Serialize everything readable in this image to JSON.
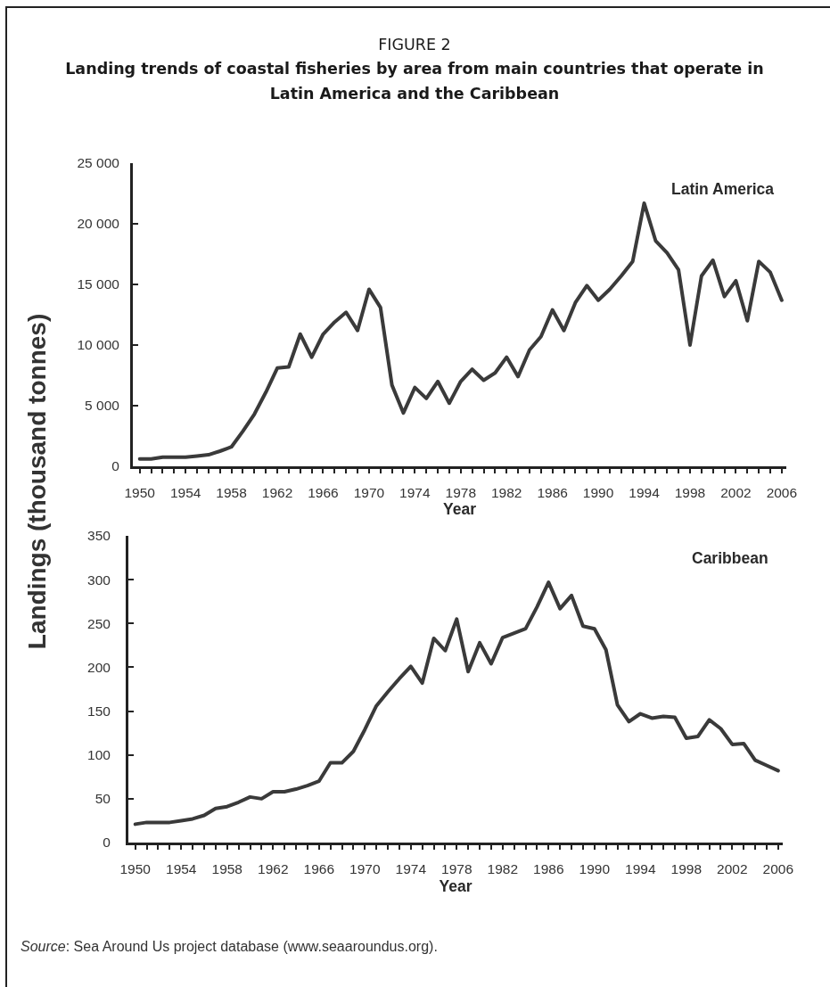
{
  "chart_data": [
    {
      "type": "line",
      "title": "FIGURE 2",
      "subtitle": "Landing trends of coastal fisheries by area from main countries that operate in Latin America and the Caribbean",
      "ylabel": "Landings (thousand tonnes)",
      "xlabel": "Year",
      "x": [
        1950,
        1951,
        1952,
        1953,
        1954,
        1955,
        1956,
        1957,
        1958,
        1959,
        1960,
        1961,
        1962,
        1963,
        1964,
        1965,
        1966,
        1967,
        1968,
        1969,
        1970,
        1971,
        1972,
        1973,
        1974,
        1975,
        1976,
        1977,
        1978,
        1979,
        1980,
        1981,
        1982,
        1983,
        1984,
        1985,
        1986,
        1987,
        1988,
        1989,
        1990,
        1991,
        1992,
        1993,
        1994,
        1995,
        1996,
        1997,
        1998,
        1999,
        2000,
        2001,
        2002,
        2003,
        2004,
        2005,
        2006
      ],
      "series": [
        {
          "name": "Latin America",
          "color": "#3a3a3a",
          "values": [
            600,
            600,
            750,
            750,
            750,
            850,
            950,
            1250,
            1600,
            2900,
            4300,
            6100,
            8100,
            8200,
            10900,
            9000,
            10900,
            11900,
            12700,
            11200,
            14600,
            13100,
            6700,
            4400,
            6500,
            5600,
            7000,
            5200,
            7000,
            8000,
            7100,
            7700,
            9000,
            7400,
            9600,
            10700,
            12900,
            11200,
            13500,
            14900,
            13700,
            14600,
            15700,
            16900,
            21700,
            18600,
            17600,
            16200,
            10000,
            15700,
            17000,
            14000,
            15300,
            12000,
            16900,
            16000,
            13700
          ]
        }
      ],
      "xlim": [
        1949.4,
        2006.4
      ],
      "xticks": [
        1950,
        {
          "value": 1951,
          "label": null
        },
        {
          "value": 1952,
          "label": null
        },
        {
          "value": 1953,
          "label": null
        },
        1954,
        {
          "value": 1955,
          "label": null
        },
        {
          "value": 1956,
          "label": null
        },
        {
          "value": 1957,
          "label": null
        },
        1958,
        {
          "value": 1959,
          "label": null
        },
        {
          "value": 1960,
          "label": null
        },
        {
          "value": 1961,
          "label": null
        },
        1962,
        {
          "value": 1963,
          "label": null
        },
        {
          "value": 1964,
          "label": null
        },
        {
          "value": 1965,
          "label": null
        },
        1966,
        {
          "value": 1967,
          "label": null
        },
        {
          "value": 1968,
          "label": null
        },
        {
          "value": 1969,
          "label": null
        },
        1970,
        {
          "value": 1971,
          "label": null
        },
        {
          "value": 1972,
          "label": null
        },
        {
          "value": 1973,
          "label": null
        },
        1974,
        {
          "value": 1975,
          "label": null
        },
        {
          "value": 1976,
          "label": null
        },
        {
          "value": 1977,
          "label": null
        },
        1978,
        {
          "value": 1979,
          "label": null
        },
        {
          "value": 1980,
          "label": null
        },
        {
          "value": 1981,
          "label": null
        },
        1982,
        {
          "value": 1983,
          "label": null
        },
        {
          "value": 1984,
          "label": null
        },
        {
          "value": 1985,
          "label": null
        },
        1986,
        {
          "value": 1987,
          "label": null
        },
        {
          "value": 1988,
          "label": null
        },
        {
          "value": 1989,
          "label": null
        },
        1990,
        {
          "value": 1991,
          "label": null
        },
        {
          "value": 1992,
          "label": null
        },
        {
          "value": 1993,
          "label": null
        },
        1994,
        {
          "value": 1995,
          "label": null
        },
        {
          "value": 1996,
          "label": null
        },
        {
          "value": 1997,
          "label": null
        },
        1998,
        {
          "value": 1999,
          "label": null
        },
        {
          "value": 2000,
          "label": null
        },
        {
          "value": 2001,
          "label": null
        },
        2002,
        {
          "value": 2003,
          "label": null
        },
        {
          "value": 2004,
          "label": null
        },
        {
          "value": 2005,
          "label": null
        },
        2006
      ],
      "ylim": [
        0,
        25000
      ],
      "yticks": [
        0,
        {
          "value": 5000,
          "label": "5 000"
        },
        {
          "value": 10000,
          "label": "10 000"
        },
        {
          "value": 15000,
          "label": "15 000"
        },
        {
          "value": 20000,
          "label": "20 000"
        },
        {
          "value": 25000,
          "label": "25 000"
        }
      ]
    },
    {
      "type": "line",
      "xlabel": "Year",
      "x": [
        1950,
        1951,
        1952,
        1953,
        1954,
        1955,
        1956,
        1957,
        1958,
        1959,
        1960,
        1961,
        1962,
        1963,
        1964,
        1965,
        1966,
        1967,
        1968,
        1969,
        1970,
        1971,
        1972,
        1973,
        1974,
        1975,
        1976,
        1977,
        1978,
        1979,
        1980,
        1981,
        1982,
        1983,
        1984,
        1985,
        1986,
        1987,
        1988,
        1989,
        1990,
        1991,
        1992,
        1993,
        1994,
        1995,
        1996,
        1997,
        1998,
        1999,
        2000,
        2001,
        2002,
        2003,
        2004,
        2005,
        2006
      ],
      "series": [
        {
          "name": "Caribbean",
          "color": "#3a3a3a",
          "values": [
            21,
            23,
            23,
            23,
            25,
            27,
            31,
            39,
            41,
            46,
            52,
            50,
            58,
            58,
            61,
            65,
            70,
            91,
            91,
            104,
            129,
            156,
            172,
            187,
            201,
            182,
            233,
            219,
            255,
            195,
            228,
            204,
            234,
            239,
            244,
            269,
            297,
            267,
            282,
            247,
            244,
            220,
            157,
            138,
            147,
            142,
            144,
            143,
            119,
            121,
            140,
            130,
            112,
            113,
            94,
            88,
            82
          ]
        }
      ],
      "xlim": [
        1949.4,
        2006.4
      ],
      "xticks": [
        1950,
        {
          "value": 1951,
          "label": null
        },
        {
          "value": 1952,
          "label": null
        },
        {
          "value": 1953,
          "label": null
        },
        1954,
        {
          "value": 1955,
          "label": null
        },
        {
          "value": 1956,
          "label": null
        },
        {
          "value": 1957,
          "label": null
        },
        1958,
        {
          "value": 1959,
          "label": null
        },
        {
          "value": 1960,
          "label": null
        },
        {
          "value": 1961,
          "label": null
        },
        1962,
        {
          "value": 1963,
          "label": null
        },
        {
          "value": 1964,
          "label": null
        },
        {
          "value": 1965,
          "label": null
        },
        1966,
        {
          "value": 1967,
          "label": null
        },
        {
          "value": 1968,
          "label": null
        },
        {
          "value": 1969,
          "label": null
        },
        1970,
        {
          "value": 1971,
          "label": null
        },
        {
          "value": 1972,
          "label": null
        },
        {
          "value": 1973,
          "label": null
        },
        1974,
        {
          "value": 1975,
          "label": null
        },
        {
          "value": 1976,
          "label": null
        },
        {
          "value": 1977,
          "label": null
        },
        1978,
        {
          "value": 1979,
          "label": null
        },
        {
          "value": 1980,
          "label": null
        },
        {
          "value": 1981,
          "label": null
        },
        1982,
        {
          "value": 1983,
          "label": null
        },
        {
          "value": 1984,
          "label": null
        },
        {
          "value": 1985,
          "label": null
        },
        1986,
        {
          "value": 1987,
          "label": null
        },
        {
          "value": 1988,
          "label": null
        },
        {
          "value": 1989,
          "label": null
        },
        1990,
        {
          "value": 1991,
          "label": null
        },
        {
          "value": 1992,
          "label": null
        },
        {
          "value": 1993,
          "label": null
        },
        1994,
        {
          "value": 1995,
          "label": null
        },
        {
          "value": 1996,
          "label": null
        },
        {
          "value": 1997,
          "label": null
        },
        1998,
        {
          "value": 1999,
          "label": null
        },
        {
          "value": 2000,
          "label": null
        },
        {
          "value": 2001,
          "label": null
        },
        2002,
        {
          "value": 2003,
          "label": null
        },
        {
          "value": 2004,
          "label": null
        },
        {
          "value": 2005,
          "label": null
        },
        2006
      ],
      "ylim": [
        0,
        350
      ],
      "yticks": [
        0,
        50,
        100,
        150,
        200,
        250,
        300,
        350
      ],
      "annotations": [
        "Source: Sea Around Us project database (www.seaaroundus.org)."
      ]
    }
  ]
}
